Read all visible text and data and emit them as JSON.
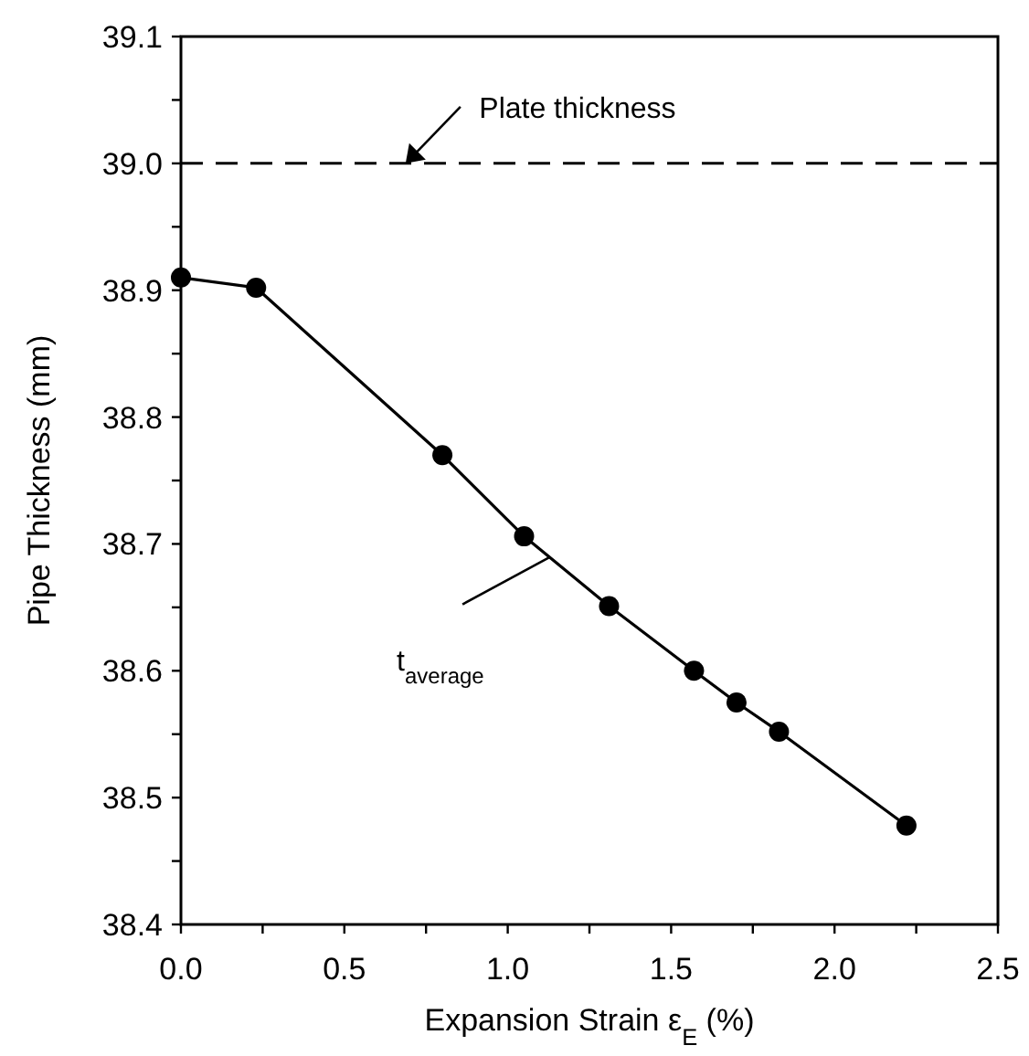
{
  "chart_data": {
    "type": "line",
    "xlabel": "Expansion Strain ε$_{E}$ (%)",
    "ylabel": "Pipe Thickness (mm)",
    "x": [
      0,
      0.23,
      0.8,
      1.05,
      1.31,
      1.57,
      1.7,
      1.83,
      2.22
    ],
    "series": [
      {
        "color": "#000000",
        "values": [
          38.91,
          38.902,
          38.77,
          38.706,
          38.651,
          38.6,
          38.575,
          38.552,
          38.478
        ]
      }
    ],
    "xlim": [
      0,
      2.5
    ],
    "xticks": [
      {
        "value": 0,
        "label": "0.0"
      },
      {
        "value": 0.25,
        "label": null
      },
      {
        "value": 0.5,
        "label": "0.5"
      },
      {
        "value": 0.75,
        "label": null
      },
      {
        "value": 1,
        "label": "1.0"
      },
      {
        "value": 1.25,
        "label": null
      },
      {
        "value": 1.5,
        "label": "1.5"
      },
      {
        "value": 1.75,
        "label": null
      },
      {
        "value": 2,
        "label": "2.0"
      },
      {
        "value": 2.25,
        "label": null
      },
      {
        "value": 2.5,
        "label": "2.5"
      }
    ],
    "ylim": [
      38.4,
      39.1
    ],
    "yticks": [
      {
        "value": 38.4,
        "label": "38.4"
      },
      {
        "value": 38.45,
        "label": null
      },
      {
        "value": 38.5,
        "label": "38.5"
      },
      {
        "value": 38.55,
        "label": null
      },
      {
        "value": 38.6,
        "label": "38.6"
      },
      {
        "value": 38.65,
        "label": null
      },
      {
        "value": 38.7,
        "label": "38.7"
      },
      {
        "value": 38.75,
        "label": null
      },
      {
        "value": 38.8,
        "label": "38.8"
      },
      {
        "value": 38.85,
        "label": null
      },
      {
        "value": 38.9,
        "label": "38.9"
      },
      {
        "value": 38.95,
        "label": null
      },
      {
        "value": 39,
        "label": "39.0"
      },
      {
        "value": 39.05,
        "label": null
      },
      {
        "value": 39.1,
        "label": "39.1"
      }
    ],
    "ref_lines": [
      {
        "axis": "y",
        "value": 39.0,
        "label": "Plate thickness",
        "color": "#000000",
        "line_style": "dashed"
      }
    ],
    "annotations": [
      "t$_{average}$"
    ],
    "marker": "circle",
    "line_style": "solid",
    "grid": false
  }
}
